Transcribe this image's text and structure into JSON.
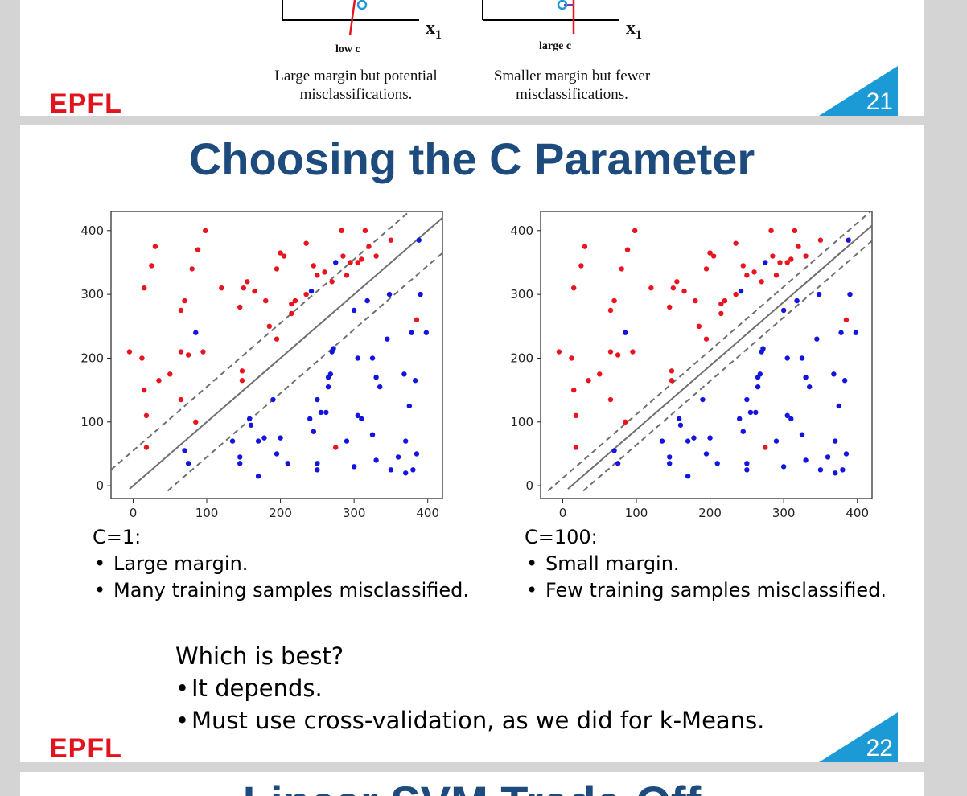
{
  "slide_prev": {
    "x_axis_label": "x",
    "x_axis_sub": "1",
    "left_label": "low c",
    "right_label": "large c",
    "left_caption_line1": "Large margin but potential",
    "left_caption_line2": "misclassifications.",
    "right_caption_line1": "Smaller margin but fewer",
    "right_caption_line2": "misclassifications.",
    "logo": "EPFL",
    "page_number": "21"
  },
  "slide_main": {
    "title": "Choosing the C Parameter",
    "left_heading": "C=1:",
    "left_points": [
      "Large margin.",
      "Many training samples misclassified."
    ],
    "right_heading": "C=100:",
    "right_points": [
      "Small margin.",
      "Few training samples misclassified."
    ],
    "question": "Which is best?",
    "answers": [
      "It depends.",
      "Must use cross-validation, as we did for k-Means."
    ],
    "logo": "EPFL",
    "page_number": "22"
  },
  "slide_next": {
    "title": "Linear SVM Trade-Off"
  },
  "colors": {
    "red_class": "#e8141e",
    "blue_class": "#1414e0",
    "title_blue": "#1e4b7e",
    "accent_cyan": "#1c9ad6",
    "epfl_red": "#e1141e"
  },
  "chart_data": [
    {
      "type": "scatter",
      "xlim": [
        -30,
        420
      ],
      "ylim": [
        -20,
        430
      ],
      "x_ticks": [
        0,
        100,
        200,
        300,
        400
      ],
      "y_ticks": [
        0,
        100,
        200,
        300,
        400
      ],
      "grid": false,
      "decision_line": {
        "slope": 1.0,
        "intercept": 0
      },
      "margin_lines": [
        {
          "slope": 1.0,
          "intercept": 55
        },
        {
          "slope": 1.0,
          "intercept": -55
        }
      ],
      "series": [
        {
          "color": "#e8141e",
          "points": [
            [
              -5,
              210
            ],
            [
              12,
              200
            ],
            [
              15,
              310
            ],
            [
              15,
              150
            ],
            [
              18,
              60
            ],
            [
              18,
              110
            ],
            [
              25,
              345
            ],
            [
              30,
              375
            ],
            [
              35,
              165
            ],
            [
              50,
              175
            ],
            [
              65,
              210
            ],
            [
              65,
              275
            ],
            [
              65,
              135
            ],
            [
              70,
              290
            ],
            [
              75,
              205
            ],
            [
              80,
              340
            ],
            [
              85,
              100
            ],
            [
              88,
              370
            ],
            [
              95,
              210
            ],
            [
              98,
              400
            ],
            [
              120,
              310
            ],
            [
              145,
              280
            ],
            [
              148,
              180
            ],
            [
              148,
              165
            ],
            [
              150,
              310
            ],
            [
              155,
              320
            ],
            [
              165,
              305
            ],
            [
              180,
              290
            ],
            [
              185,
              250
            ],
            [
              195,
              340
            ],
            [
              195,
              230
            ],
            [
              200,
              365
            ],
            [
              205,
              360
            ],
            [
              215,
              270
            ],
            [
              215,
              285
            ],
            [
              220,
              290
            ],
            [
              235,
              380
            ],
            [
              235,
              300
            ],
            [
              245,
              345
            ],
            [
              250,
              330
            ],
            [
              260,
              335
            ],
            [
              270,
              320
            ],
            [
              283,
              400
            ],
            [
              285,
              360
            ],
            [
              290,
              330
            ],
            [
              295,
              350
            ],
            [
              305,
              350
            ],
            [
              310,
              355
            ],
            [
              315,
              400
            ],
            [
              320,
              375
            ],
            [
              330,
              360
            ],
            [
              350,
              385
            ],
            [
              385,
              260
            ],
            [
              275,
              60
            ]
          ]
        },
        {
          "color": "#1414e0",
          "points": [
            [
              70,
              55
            ],
            [
              75,
              35
            ],
            [
              85,
              240
            ],
            [
              135,
              70
            ],
            [
              145,
              45
            ],
            [
              145,
              35
            ],
            [
              158,
              105
            ],
            [
              160,
              95
            ],
            [
              170,
              70
            ],
            [
              170,
              15
            ],
            [
              178,
              75
            ],
            [
              190,
              135
            ],
            [
              195,
              50
            ],
            [
              200,
              75
            ],
            [
              210,
              35
            ],
            [
              240,
              105
            ],
            [
              242,
              305
            ],
            [
              245,
              85
            ],
            [
              250,
              25
            ],
            [
              250,
              35
            ],
            [
              250,
              135
            ],
            [
              255,
              115
            ],
            [
              262,
              115
            ],
            [
              265,
              155
            ],
            [
              265,
              170
            ],
            [
              268,
              175
            ],
            [
              270,
              210
            ],
            [
              272,
              215
            ],
            [
              275,
              350
            ],
            [
              290,
              70
            ],
            [
              300,
              30
            ],
            [
              300,
              275
            ],
            [
              305,
              200
            ],
            [
              305,
              110
            ],
            [
              310,
              105
            ],
            [
              318,
              290
            ],
            [
              325,
              200
            ],
            [
              325,
              80
            ],
            [
              330,
              170
            ],
            [
              330,
              40
            ],
            [
              335,
              155
            ],
            [
              345,
              230
            ],
            [
              348,
              300
            ],
            [
              350,
              25
            ],
            [
              360,
              45
            ],
            [
              368,
              175
            ],
            [
              370,
              70
            ],
            [
              370,
              20
            ],
            [
              375,
              125
            ],
            [
              378,
              240
            ],
            [
              380,
              25
            ],
            [
              383,
              165
            ],
            [
              385,
              50
            ],
            [
              388,
              385
            ],
            [
              390,
              300
            ],
            [
              398,
              240
            ]
          ]
        }
      ]
    },
    {
      "type": "scatter",
      "xlim": [
        -30,
        420
      ],
      "ylim": [
        -20,
        430
      ],
      "x_ticks": [
        0,
        100,
        200,
        300,
        400
      ],
      "y_ticks": [
        0,
        100,
        200,
        300,
        400
      ],
      "grid": false,
      "decision_line": {
        "slope": 1.0,
        "intercept": -12
      },
      "margin_lines": [
        {
          "slope": 1.0,
          "intercept": 12
        },
        {
          "slope": 1.0,
          "intercept": -36
        }
      ],
      "series": [
        {
          "color": "#e8141e",
          "points": [
            [
              -5,
              210
            ],
            [
              12,
              200
            ],
            [
              15,
              310
            ],
            [
              15,
              150
            ],
            [
              18,
              60
            ],
            [
              18,
              110
            ],
            [
              25,
              345
            ],
            [
              30,
              375
            ],
            [
              35,
              165
            ],
            [
              50,
              175
            ],
            [
              65,
              210
            ],
            [
              65,
              275
            ],
            [
              65,
              135
            ],
            [
              70,
              290
            ],
            [
              75,
              205
            ],
            [
              80,
              340
            ],
            [
              85,
              100
            ],
            [
              88,
              370
            ],
            [
              95,
              210
            ],
            [
              98,
              400
            ],
            [
              120,
              310
            ],
            [
              145,
              280
            ],
            [
              148,
              180
            ],
            [
              148,
              165
            ],
            [
              150,
              310
            ],
            [
              155,
              320
            ],
            [
              165,
              305
            ],
            [
              180,
              290
            ],
            [
              185,
              250
            ],
            [
              195,
              340
            ],
            [
              195,
              230
            ],
            [
              200,
              365
            ],
            [
              205,
              360
            ],
            [
              215,
              270
            ],
            [
              215,
              285
            ],
            [
              220,
              290
            ],
            [
              235,
              380
            ],
            [
              235,
              300
            ],
            [
              245,
              345
            ],
            [
              250,
              330
            ],
            [
              260,
              335
            ],
            [
              270,
              320
            ],
            [
              283,
              400
            ],
            [
              285,
              360
            ],
            [
              290,
              330
            ],
            [
              295,
              350
            ],
            [
              305,
              350
            ],
            [
              310,
              355
            ],
            [
              315,
              400
            ],
            [
              320,
              375
            ],
            [
              330,
              360
            ],
            [
              350,
              385
            ],
            [
              385,
              260
            ],
            [
              275,
              60
            ]
          ]
        },
        {
          "color": "#1414e0",
          "points": [
            [
              70,
              55
            ],
            [
              75,
              35
            ],
            [
              85,
              240
            ],
            [
              135,
              70
            ],
            [
              145,
              45
            ],
            [
              145,
              35
            ],
            [
              158,
              105
            ],
            [
              160,
              95
            ],
            [
              170,
              70
            ],
            [
              170,
              15
            ],
            [
              178,
              75
            ],
            [
              190,
              135
            ],
            [
              195,
              50
            ],
            [
              200,
              75
            ],
            [
              210,
              35
            ],
            [
              240,
              105
            ],
            [
              242,
              305
            ],
            [
              245,
              85
            ],
            [
              250,
              25
            ],
            [
              250,
              35
            ],
            [
              250,
              135
            ],
            [
              255,
              115
            ],
            [
              262,
              115
            ],
            [
              265,
              155
            ],
            [
              265,
              170
            ],
            [
              268,
              175
            ],
            [
              270,
              210
            ],
            [
              272,
              215
            ],
            [
              275,
              350
            ],
            [
              290,
              70
            ],
            [
              300,
              30
            ],
            [
              300,
              275
            ],
            [
              305,
              200
            ],
            [
              305,
              110
            ],
            [
              310,
              105
            ],
            [
              318,
              290
            ],
            [
              325,
              200
            ],
            [
              325,
              80
            ],
            [
              330,
              170
            ],
            [
              330,
              40
            ],
            [
              335,
              155
            ],
            [
              345,
              230
            ],
            [
              348,
              300
            ],
            [
              350,
              25
            ],
            [
              360,
              45
            ],
            [
              368,
              175
            ],
            [
              370,
              70
            ],
            [
              370,
              20
            ],
            [
              375,
              125
            ],
            [
              378,
              240
            ],
            [
              380,
              25
            ],
            [
              383,
              165
            ],
            [
              385,
              50
            ],
            [
              388,
              385
            ],
            [
              390,
              300
            ],
            [
              398,
              240
            ]
          ]
        }
      ]
    }
  ]
}
